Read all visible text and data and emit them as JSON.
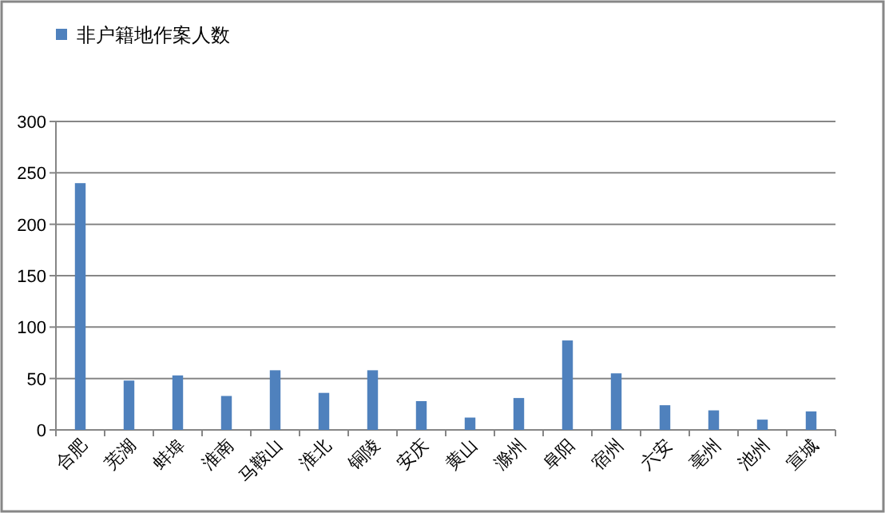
{
  "chart_data": {
    "type": "bar",
    "categories": [
      "合肥",
      "芜湖",
      "蚌埠",
      "淮南",
      "马鞍山",
      "淮北",
      "铜陵",
      "安庆",
      "黄山",
      "滁州",
      "阜阳",
      "宿州",
      "六安",
      "亳州",
      "池州",
      "宣城"
    ],
    "series": [
      {
        "name": "非户籍地作案人数",
        "color": "#4f81bd",
        "values": [
          240,
          48,
          53,
          33,
          58,
          36,
          58,
          28,
          12,
          31,
          87,
          55,
          24,
          19,
          10,
          18
        ]
      }
    ],
    "ylim": [
      0,
      300
    ],
    "yticks": [
      0,
      50,
      100,
      150,
      200,
      250,
      300
    ],
    "grid": "y",
    "legend": "top left"
  }
}
